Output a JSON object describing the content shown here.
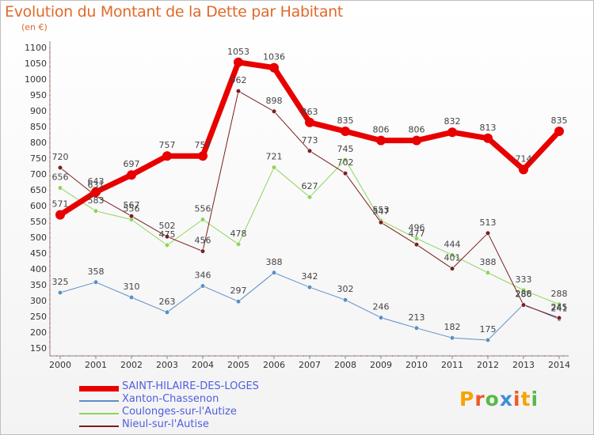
{
  "header": {
    "title": "Evolution du Montant de la Dette par Habitant",
    "subtitle": "(en €)"
  },
  "logo": {
    "text": "Proxiti",
    "colors": [
      "#f7a300",
      "#f05a28",
      "#58b947",
      "#3d8fd8",
      "#f05a28",
      "#f7a300",
      "#58b947"
    ]
  },
  "chart_data": {
    "type": "line",
    "title": "Evolution du Montant de la Dette par Habitant",
    "subtitle": "(en €)",
    "xlabel": "",
    "ylabel": "",
    "ylim": [
      150,
      1100
    ],
    "yticks": [
      150,
      200,
      250,
      300,
      350,
      400,
      450,
      500,
      550,
      600,
      650,
      700,
      750,
      800,
      850,
      900,
      950,
      1000,
      1050,
      1100
    ],
    "categories": [
      "2000",
      "2001",
      "2002",
      "2003",
      "2004",
      "2005",
      "2006",
      "2007",
      "2008",
      "2009",
      "2010",
      "2011",
      "2012",
      "2013",
      "2014"
    ],
    "grid": false,
    "legend": "bottom-left",
    "series": [
      {
        "name": "SAINT-HILAIRE-DES-LOGES",
        "color": "#e80000",
        "width": 7,
        "values": [
          571,
          643,
          697,
          757,
          757,
          1053,
          1036,
          863,
          835,
          806,
          806,
          832,
          813,
          714,
          835
        ],
        "labels": [
          "571",
          "643",
          "697",
          "757",
          "757",
          "1053",
          "1036",
          "863",
          "835",
          "806",
          "806",
          "832",
          "813",
          "714",
          "835"
        ]
      },
      {
        "name": "Xanton-Chassenon",
        "color": "#5a8fc4",
        "width": 1,
        "values": [
          325,
          358,
          310,
          263,
          346,
          297,
          388,
          342,
          302,
          246,
          213,
          182,
          175,
          288,
          241
        ],
        "labels": [
          "325",
          "358",
          "310",
          "263",
          "346",
          "297",
          "388",
          "342",
          "302",
          "246",
          "213",
          "182",
          "175",
          "288",
          "241"
        ]
      },
      {
        "name": "Coulonges-sur-l'Autize",
        "color": "#8fd45a",
        "width": 1,
        "values": [
          656,
          583,
          556,
          475,
          556,
          478,
          721,
          627,
          745,
          553,
          496,
          444,
          388,
          333,
          288
        ],
        "labels": [
          "656",
          "583",
          "556",
          "475",
          "556",
          "478",
          "721",
          "627",
          "745",
          "553",
          "496",
          "444",
          "388",
          "333",
          "288"
        ]
      },
      {
        "name": "Nieul-sur-l'Autise",
        "color": "#7a1e1e",
        "width": 1,
        "values": [
          720,
          631,
          567,
          502,
          456,
          962,
          898,
          773,
          702,
          547,
          477,
          401,
          513,
          286,
          245
        ],
        "labels": [
          "720",
          "631",
          "567",
          "502",
          "456",
          "962",
          "898",
          "773",
          "702",
          "547",
          "477",
          "401",
          "513",
          "286",
          "245"
        ]
      }
    ]
  }
}
